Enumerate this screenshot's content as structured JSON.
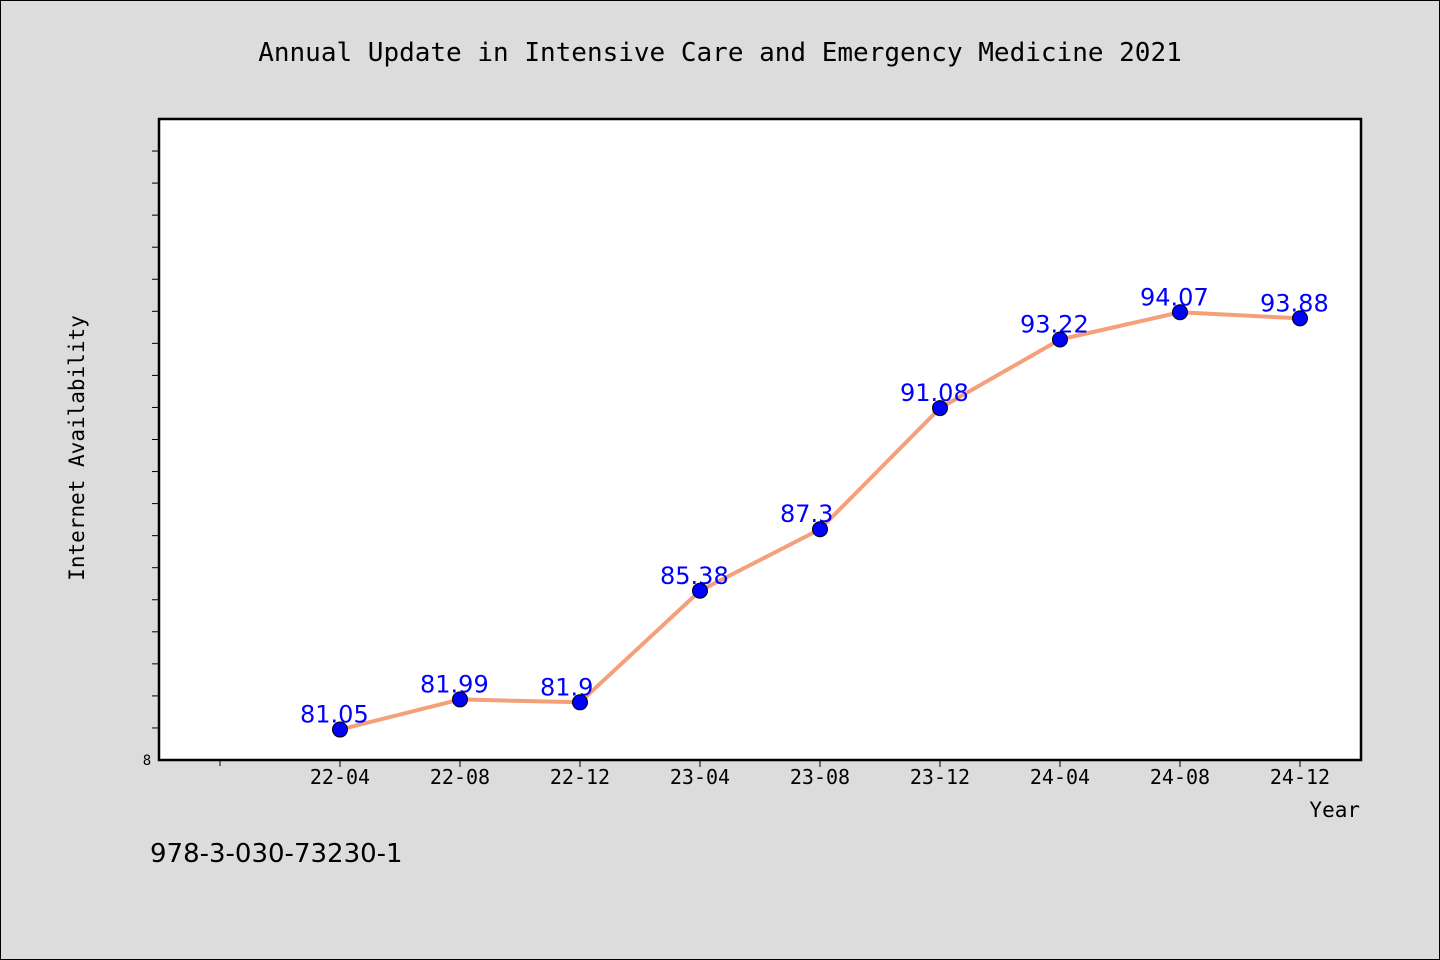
{
  "chart_data": {
    "type": "line",
    "title": "Annual Update in Intensive Care and Emergency Medicine 2021",
    "xlabel": "Year",
    "ylabel": "Internet Availability",
    "categories": [
      "22-04",
      "22-08",
      "22-12",
      "23-04",
      "23-08",
      "23-12",
      "24-04",
      "24-08",
      "24-12"
    ],
    "series": [
      {
        "values": [
          81.05,
          81.99,
          81.9,
          85.38,
          87.3,
          91.08,
          93.22,
          94.07,
          93.88
        ],
        "value_labels": [
          "81.05",
          "81.99",
          "81.9",
          "85.38",
          "87.3",
          "91.08",
          "93.22",
          "94.07",
          "93.88"
        ]
      }
    ],
    "y_origin_label": "8",
    "ylim": [
      80.1,
      100.1
    ],
    "grid": false,
    "colors": {
      "line": "#f4a07a",
      "marker": "#0000ff",
      "data_label": "#0000ff",
      "plot_background": "#ffffff",
      "page_background": "#dcdcdc"
    }
  },
  "footer_text": "978-3-030-73230-1"
}
